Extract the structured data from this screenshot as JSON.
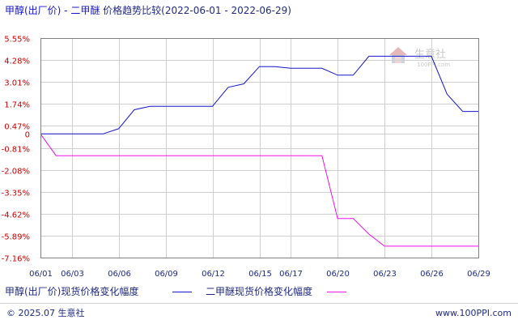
{
  "title": "甲醇(出厂价) - 二甲醚 价格趋势比较(2022-06-01 - 2022-06-29)",
  "footer": {
    "copyright": "© 2025.07 生意社",
    "url": "www.100PPI.com"
  },
  "watermark": {
    "text": "生意社",
    "sub": "100PPI.com"
  },
  "colors": {
    "series1": "#1515cc",
    "series2": "#ee11ee",
    "title_left": "#1515cc",
    "title_right": "#1f2a80",
    "axis_red": "#cc0000",
    "grid": "#cfcfcf",
    "frame": "#7f7f7f"
  },
  "chart_data": {
    "type": "line",
    "title": "甲醇(出厂价) - 二甲醚 价格趋势比较(2022-06-01 - 2022-06-29)",
    "xlabel": "",
    "ylabel": "",
    "x": [
      "06/01",
      "06/02",
      "06/03",
      "06/04",
      "06/05",
      "06/06",
      "06/07",
      "06/08",
      "06/09",
      "06/10",
      "06/11",
      "06/12",
      "06/13",
      "06/14",
      "06/15",
      "06/16",
      "06/17",
      "06/18",
      "06/19",
      "06/20",
      "06/21",
      "06/22",
      "06/23",
      "06/24",
      "06/25",
      "06/26",
      "06/27",
      "06/28",
      "06/29"
    ],
    "x_tick_labels": [
      "06/01",
      "06/03",
      "06/06",
      "06/09",
      "06/12",
      "06/15",
      "06/17",
      "06/20",
      "06/23",
      "06/26",
      "06/29"
    ],
    "y_tick_labels": [
      "5.55%",
      "4.28%",
      "3.01%",
      "1.74%",
      "0.47%",
      "0",
      "-0.81%",
      "-2.08%",
      "-3.35%",
      "-4.62%",
      "-5.89%",
      "-7.16%"
    ],
    "y_ticks": [
      5.55,
      4.28,
      3.01,
      1.74,
      0.47,
      0,
      -0.81,
      -2.08,
      -3.35,
      -4.62,
      -5.89,
      -7.16
    ],
    "ylim": [
      -7.16,
      5.55
    ],
    "grid": true,
    "legend_position": "bottom",
    "series": [
      {
        "name": "甲醇(出厂价)现货价格变化幅度",
        "color": "#1515cc",
        "values": [
          0,
          0,
          0,
          0,
          0,
          0.3,
          1.4,
          1.6,
          1.6,
          1.6,
          1.6,
          1.6,
          2.7,
          2.9,
          3.9,
          3.9,
          3.8,
          3.8,
          3.8,
          3.4,
          3.4,
          4.5,
          4.5,
          4.5,
          4.5,
          4.5,
          2.3,
          1.3,
          1.3
        ]
      },
      {
        "name": "二甲醚现货价格变化幅度",
        "color": "#ee11ee",
        "values": [
          0,
          -1.26,
          -1.26,
          -1.26,
          -1.26,
          -1.26,
          -1.26,
          -1.26,
          -1.26,
          -1.26,
          -1.26,
          -1.26,
          -1.26,
          -1.26,
          -1.26,
          -1.26,
          -1.26,
          -1.26,
          -1.26,
          -4.9,
          -4.9,
          -5.8,
          -6.5,
          -6.5,
          -6.5,
          -6.5,
          -6.5,
          -6.5,
          -6.5
        ]
      }
    ]
  }
}
